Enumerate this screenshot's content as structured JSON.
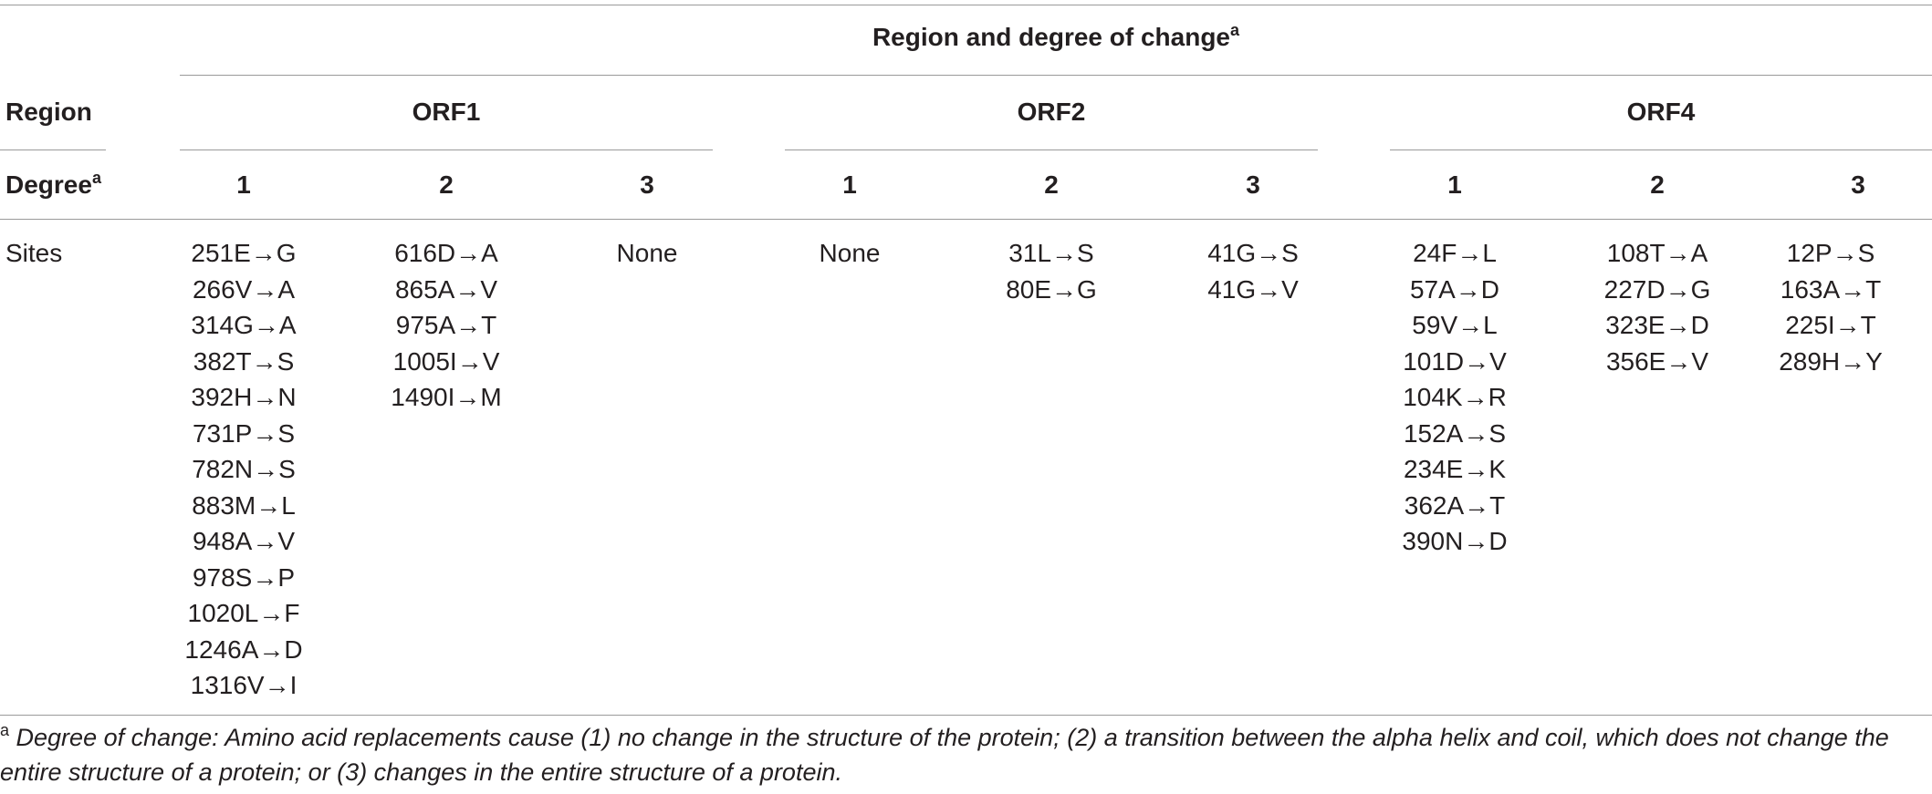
{
  "table": {
    "spanning_header": "Region and degree of change",
    "spanning_header_sup": "a",
    "row_labels": {
      "region": "Region",
      "degree": "Degree",
      "degree_sup": "a",
      "sites": "Sites"
    },
    "regions": [
      "ORF1",
      "ORF2",
      "ORF4"
    ],
    "degrees": [
      "1",
      "2",
      "3",
      "1",
      "2",
      "3",
      "1",
      "2",
      "3"
    ],
    "sites": [
      [
        "251E→G",
        "266V→A",
        "314G→A",
        "382T→S",
        "392H→N",
        "731P→S",
        "782N→S",
        "883M→L",
        "948A→V",
        "978S→P",
        "1020L→F",
        "1246A→D",
        "1316V→I"
      ],
      [
        "616D→A",
        "865A→V",
        "975A→T",
        "1005I→V",
        "1490I→M"
      ],
      [
        "None"
      ],
      [
        "None"
      ],
      [
        "31L→S",
        "80E→G"
      ],
      [
        "41G→S",
        "41G→V"
      ],
      [
        "24F→L",
        "57A→D",
        "59V→L",
        "101D→V",
        "104K→R",
        "152A→S",
        "234E→K",
        "362A→T",
        "390N→D"
      ],
      [
        "108T→A",
        "227D→G",
        "323E→D",
        "356E→V"
      ],
      [
        "12P→S",
        "163A→T",
        "225I→T",
        "289H→Y"
      ]
    ]
  },
  "footnote": {
    "marker": "a",
    "text": "Degree of change: Amino acid replacements cause (1) no change in the structure of the protein; (2) a transition between the alpha helix and coil, which does not change the entire structure of a protein; or (3) changes in the entire structure of a protein."
  }
}
